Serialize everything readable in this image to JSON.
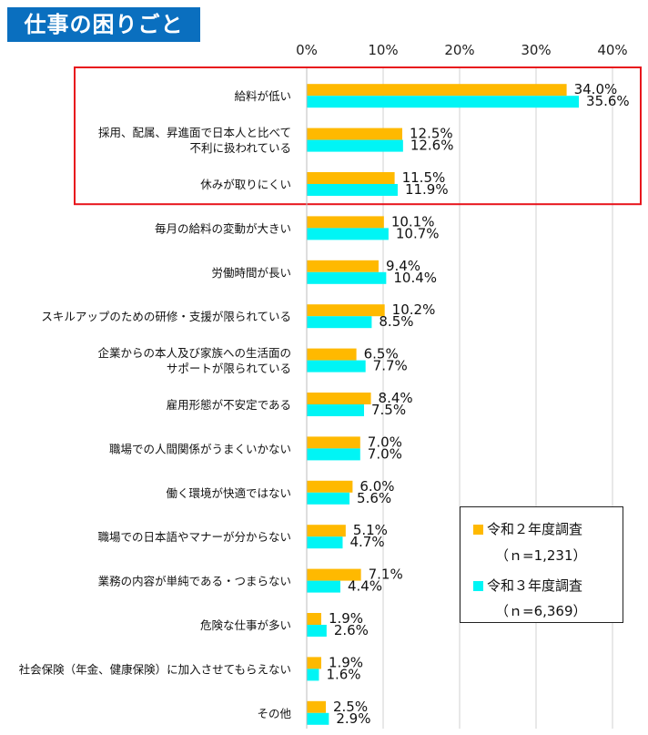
{
  "title": "仕事の困りごと",
  "legend": [
    {
      "label": "令和２年度調査",
      "n": "（ｎ=1,231）"
    },
    {
      "label": "令和３年度調査",
      "n": "（ｎ=6,369）"
    }
  ],
  "colors": {
    "series0": "#ffb900",
    "series1": "#00f5f5",
    "highlight": "#e8141c",
    "grid": "#d0d0d0"
  },
  "chart_data": {
    "type": "bar",
    "orientation": "horizontal",
    "xlim": [
      0,
      40
    ],
    "ticks": [
      "0%",
      "10%",
      "20%",
      "30%",
      "40%"
    ],
    "categories": [
      [
        "給料が低い"
      ],
      [
        "採用、配属、昇進面で日本人と比べて",
        "不利に扱われている"
      ],
      [
        "休みが取りにくい"
      ],
      [
        "毎月の給料の変動が大きい"
      ],
      [
        "労働時間が長い"
      ],
      [
        "スキルアップのための研修・支援が限られている"
      ],
      [
        "企業からの本人及び家族への生活面の",
        "サポートが限られている"
      ],
      [
        "雇用形態が不安定である"
      ],
      [
        "職場での人間関係がうまくいかない"
      ],
      [
        "働く環境が快適ではない"
      ],
      [
        "職場での日本語やマナーが分からない"
      ],
      [
        "業務の内容が単純である・つまらない"
      ],
      [
        "危険な仕事が多い"
      ],
      [
        "社会保険（年金、健康保険）に加入させてもらえない"
      ],
      [
        "その他"
      ]
    ],
    "series": [
      {
        "name": "令和２年度調査",
        "values": [
          34.0,
          12.5,
          11.5,
          10.1,
          9.4,
          10.2,
          6.5,
          8.4,
          7.0,
          6.0,
          5.1,
          7.1,
          1.9,
          1.9,
          2.5
        ],
        "labels": [
          "34.0%",
          "12.5%",
          "11.5%",
          "10.1%",
          "9.4%",
          "10.2%",
          "6.5%",
          "8.4%",
          "7.0%",
          "6.0%",
          "5.1%",
          "7.1%",
          "1.9%",
          "1.9%",
          "2.5%"
        ]
      },
      {
        "name": "令和３年度調査",
        "values": [
          35.6,
          12.6,
          11.9,
          10.7,
          10.4,
          8.5,
          7.7,
          7.5,
          7.0,
          5.6,
          4.7,
          4.4,
          2.6,
          1.6,
          2.9
        ],
        "labels": [
          "35.6%",
          "12.6%",
          "11.9%",
          "10.7%",
          "10.4%",
          "8.5%",
          "7.7%",
          "7.5%",
          "7.0%",
          "5.6%",
          "4.7%",
          "4.4%",
          "2.6%",
          "1.6%",
          "2.9%"
        ]
      }
    ],
    "highlight_categories": [
      0,
      1,
      2
    ]
  }
}
